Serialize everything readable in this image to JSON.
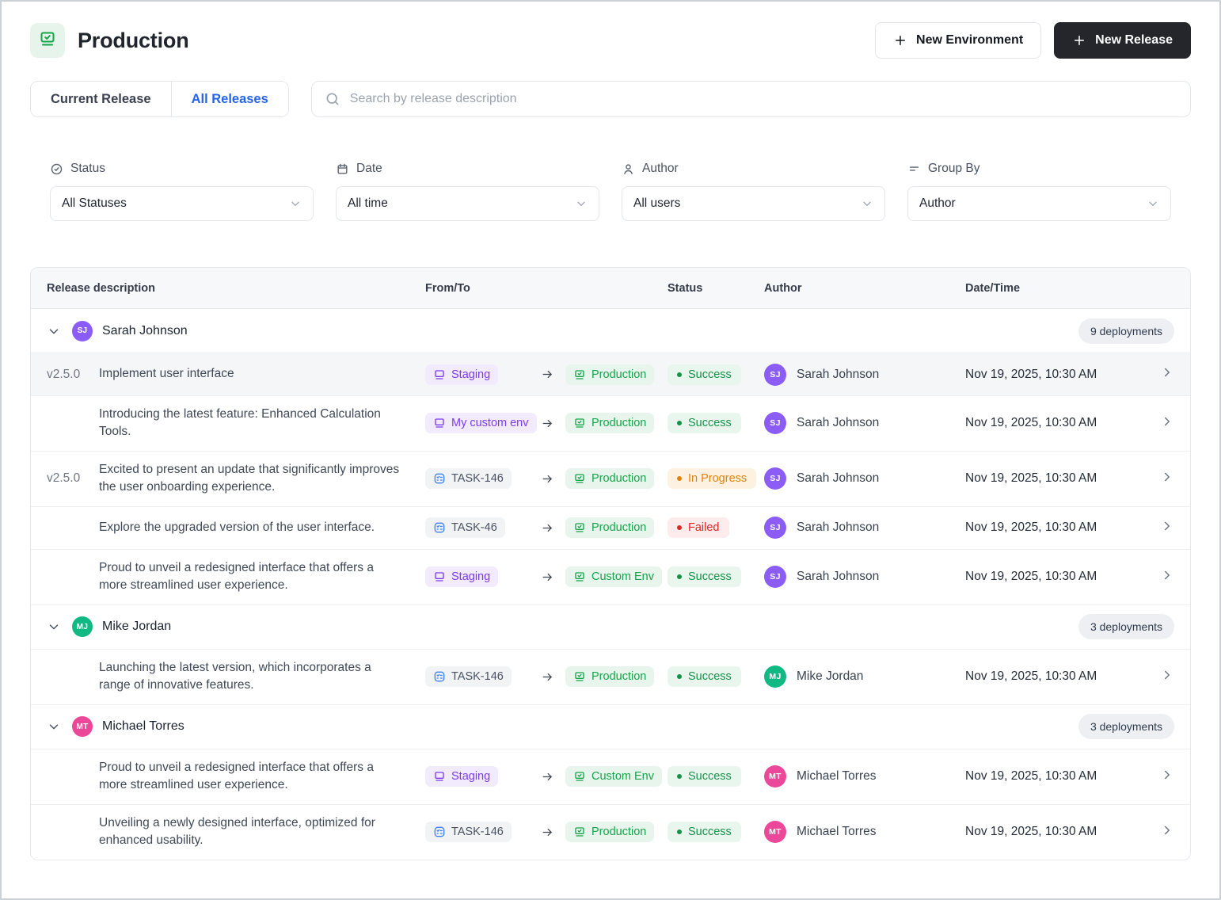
{
  "header": {
    "title": "Production",
    "icon": "monitor-check-icon",
    "new_environment_label": "New Environment",
    "new_release_label": "New Release"
  },
  "tabs": [
    {
      "label": "Current Release",
      "active": false
    },
    {
      "label": "All Releases",
      "active": true
    }
  ],
  "search": {
    "placeholder": "Search by release description",
    "icon": "search-icon"
  },
  "filters": [
    {
      "label": "Status",
      "icon": "circle-check-icon",
      "value": "All Statuses"
    },
    {
      "label": "Date",
      "icon": "calendar-icon",
      "value": "All time"
    },
    {
      "label": "Author",
      "icon": "user-icon",
      "value": "All users"
    },
    {
      "label": "Group By",
      "icon": "funnel-lines-icon",
      "value": "Author"
    }
  ],
  "table": {
    "columns": [
      "Release description",
      "From/To",
      "Status",
      "Author",
      "Date/Time"
    ],
    "groups": [
      {
        "author": {
          "name": "Sarah Johnson",
          "initials": "SJ",
          "color": "#8b5cf6"
        },
        "deployments_label": "9 deployments",
        "rows": [
          {
            "version": "v2.5.0",
            "description": "Implement user interface",
            "from": {
              "label": "Staging",
              "kind": "env-purple"
            },
            "to": {
              "label": "Production",
              "kind": "env-green"
            },
            "status": {
              "label": "Success",
              "kind": "success"
            },
            "datetime": "Nov 19, 2025, 10:30 AM",
            "highlighted": true
          },
          {
            "version": "",
            "description": "Introducing the latest feature: Enhanced Calculation Tools.",
            "from": {
              "label": "My custom env",
              "kind": "env-purple"
            },
            "to": {
              "label": "Production",
              "kind": "env-green"
            },
            "status": {
              "label": "Success",
              "kind": "success"
            },
            "datetime": "Nov 19, 2025, 10:30 AM",
            "highlighted": false
          },
          {
            "version": "v2.5.0",
            "description": "Excited to present an update that significantly improves the user onboarding experience.",
            "from": {
              "label": "TASK-146",
              "kind": "task"
            },
            "to": {
              "label": "Production",
              "kind": "env-green"
            },
            "status": {
              "label": "In Progress",
              "kind": "in-progress"
            },
            "datetime": "Nov 19, 2025, 10:30 AM",
            "highlighted": false
          },
          {
            "version": "",
            "description": "Explore the upgraded version of the user interface.",
            "from": {
              "label": "TASK-46",
              "kind": "task"
            },
            "to": {
              "label": "Production",
              "kind": "env-green"
            },
            "status": {
              "label": "Failed",
              "kind": "failed"
            },
            "datetime": "Nov 19, 2025, 10:30 AM",
            "highlighted": false
          },
          {
            "version": "",
            "description": "Proud to unveil a redesigned interface that offers a more streamlined user experience.",
            "from": {
              "label": "Staging",
              "kind": "env-purple"
            },
            "to": {
              "label": "Custom Env",
              "kind": "env-green"
            },
            "status": {
              "label": "Success",
              "kind": "success"
            },
            "datetime": "Nov 19, 2025, 10:30 AM",
            "highlighted": false
          }
        ]
      },
      {
        "author": {
          "name": "Mike Jordan",
          "initials": "MJ",
          "color": "#10b981"
        },
        "deployments_label": "3 deployments",
        "rows": [
          {
            "version": "",
            "description": "Launching the latest version, which incorporates a range of innovative features.",
            "from": {
              "label": "TASK-146",
              "kind": "task"
            },
            "to": {
              "label": "Production",
              "kind": "env-green"
            },
            "status": {
              "label": "Success",
              "kind": "success"
            },
            "datetime": "Nov 19, 2025, 10:30 AM",
            "highlighted": false
          }
        ]
      },
      {
        "author": {
          "name": "Michael Torres",
          "initials": "MT",
          "color": "#ec4899"
        },
        "deployments_label": "3 deployments",
        "rows": [
          {
            "version": "",
            "description": "Proud to unveil a redesigned interface that offers a more streamlined user experience.",
            "from": {
              "label": "Staging",
              "kind": "env-purple"
            },
            "to": {
              "label": "Custom Env",
              "kind": "env-green"
            },
            "status": {
              "label": "Success",
              "kind": "success"
            },
            "datetime": "Nov 19, 2025, 10:30 AM",
            "highlighted": false
          },
          {
            "version": "",
            "description": "Unveiling a newly designed interface, optimized for enhanced usability.",
            "from": {
              "label": "TASK-146",
              "kind": "task"
            },
            "to": {
              "label": "Production",
              "kind": "env-green"
            },
            "status": {
              "label": "Success",
              "kind": "success"
            },
            "datetime": "Nov 19, 2025, 10:30 AM",
            "highlighted": false
          }
        ]
      }
    ]
  },
  "colors": {
    "accent_green": "#16a34a",
    "accent_purple": "#7c3aed",
    "accent_blue": "#2563eb",
    "task_icon_blue": "#3b82f6",
    "success_text": "#17914a",
    "in_progress_text": "#e0820c",
    "failed_text": "#dc2626",
    "avatar_sarah": "#8b5cf6",
    "avatar_mike": "#10b981",
    "avatar_michael": "#ec4899",
    "dark_button_bg": "#24262c"
  }
}
